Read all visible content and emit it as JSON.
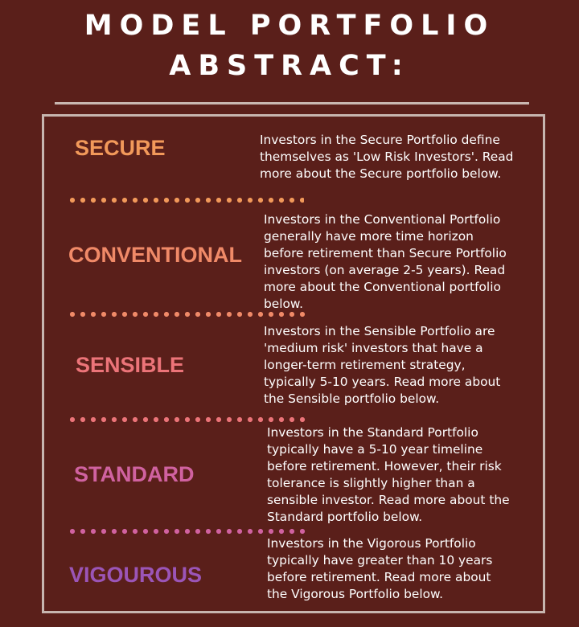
{
  "title": {
    "line1": "MODEL PORTFOLIO",
    "line2": "ABSTRACT:"
  },
  "colors": {
    "background": "#5a1f1a",
    "secure": "#f2995a",
    "conventional": "#f08a68",
    "sensible": "#ec7479",
    "standard": "#d062a0",
    "vigourous": "#9b55b7"
  },
  "portfolios": [
    {
      "label": "SECURE",
      "description_lines": [
        "Investors in the Secure Portfolio define",
        "themselves as 'Low Risk Investors'.  Read",
        "more about the Secure portfolio below."
      ]
    },
    {
      "label": "CONVENTIONAL",
      "description_lines": [
        "Investors in the Conventional Portfolio",
        "generally have  more time horizon",
        "before retirement than Secure Portfolio",
        "investors (on average 2-5 years). Read",
        "more about the Conventional portfolio",
        "below."
      ]
    },
    {
      "label": "SENSIBLE",
      "description_lines": [
        "Investors in the Sensible Portfolio are",
        "'medium risk' investors that have a",
        "longer-term retirement strategy,",
        "typically 5-10 years. Read more about",
        "the Sensible portfolio below."
      ]
    },
    {
      "label": "STANDARD",
      "description_lines": [
        "Investors in the Standard Portfolio",
        "typically have a 5-10 year timeline",
        "before retirement.  However, their risk",
        "tolerance is slightly higher than a",
        "sensible investor. Read more about the",
        "Standard portfolio below."
      ]
    },
    {
      "label": "VIGOUROUS",
      "description_lines": [
        "Investors in the Vigorous Portfolio",
        "typically have greater than 10 years",
        "before retirement. Read more about",
        "the Vigorous Portfolio below."
      ]
    }
  ]
}
